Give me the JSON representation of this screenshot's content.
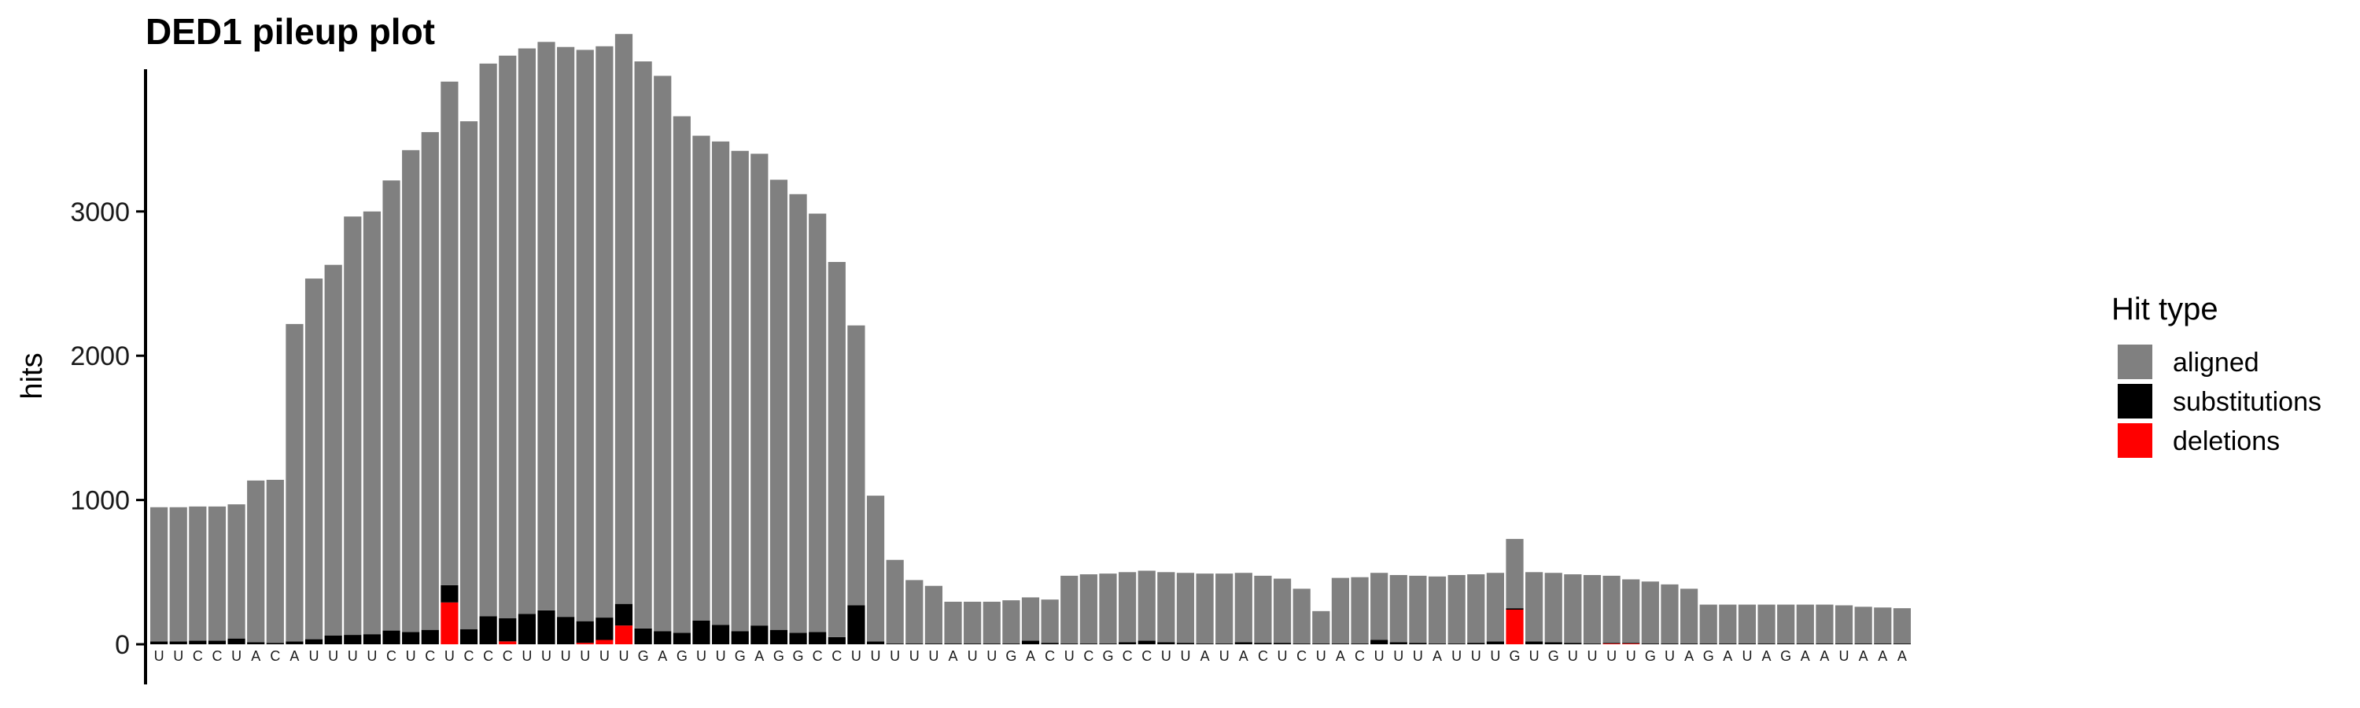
{
  "chart_data": {
    "type": "bar",
    "stacked": true,
    "title": "DED1 pileup plot",
    "xlabel": "",
    "ylabel": "hits",
    "ylim": [
      0,
      4000
    ],
    "yticks": [
      0,
      1000,
      2000,
      3000
    ],
    "grid": false,
    "legend": {
      "title": "Hit type",
      "position": "right"
    },
    "categories": [
      "U",
      "U",
      "C",
      "C",
      "U",
      "A",
      "C",
      "A",
      "U",
      "U",
      "U",
      "U",
      "C",
      "U",
      "C",
      "U",
      "C",
      "C",
      "C",
      "U",
      "U",
      "U",
      "U",
      "U",
      "U",
      "G",
      "A",
      "G",
      "U",
      "U",
      "G",
      "A",
      "G",
      "G",
      "C",
      "C",
      "U",
      "U",
      "U",
      "U",
      "U",
      "A",
      "U",
      "U",
      "G",
      "A",
      "C",
      "U",
      "C",
      "G",
      "C",
      "C",
      "U",
      "U",
      "A",
      "U",
      "A",
      "C",
      "U",
      "C",
      "U",
      "A",
      "C",
      "U",
      "U",
      "U",
      "A",
      "U",
      "U",
      "U",
      "G",
      "U",
      "G",
      "U",
      "U",
      "U",
      "U",
      "G",
      "U",
      "A",
      "G",
      "A",
      "U",
      "A",
      "G",
      "A",
      "A",
      "U",
      "A",
      "A",
      "A"
    ],
    "series": [
      {
        "name": "aligned",
        "color": "#808080",
        "values": [
          930,
          930,
          930,
          930,
          930,
          1120,
          1130,
          2200,
          2500,
          2570,
          2900,
          2930,
          3120,
          3340,
          3450,
          3490,
          3520,
          3830,
          3900,
          3920,
          3940,
          3950,
          3960,
          3960,
          3950,
          3930,
          3850,
          3580,
          3360,
          3350,
          3330,
          3270,
          3120,
          3040,
          2900,
          2600,
          1940,
          1010,
          580,
          440,
          400,
          290,
          290,
          290,
          300,
          300,
          300,
          470,
          480,
          485,
          485,
          485,
          485,
          485,
          485,
          485,
          480,
          465,
          445,
          380,
          225,
          455,
          460,
          465,
          465,
          465,
          465,
          475,
          475,
          475,
          480,
          480,
          480,
          475,
          475,
          465,
          440,
          430,
          410,
          380,
          270,
          270,
          270,
          270,
          270,
          270,
          270,
          265,
          255,
          250,
          245
        ]
      },
      {
        "name": "substitutions",
        "color": "#000000",
        "values": [
          20,
          20,
          25,
          25,
          40,
          15,
          10,
          20,
          35,
          60,
          65,
          70,
          95,
          85,
          100,
          120,
          105,
          195,
          160,
          210,
          235,
          190,
          150,
          155,
          150,
          110,
          90,
          80,
          165,
          135,
          90,
          130,
          100,
          80,
          85,
          50,
          270,
          20,
          5,
          5,
          5,
          5,
          5,
          5,
          5,
          25,
          10,
          5,
          5,
          5,
          15,
          25,
          15,
          10,
          5,
          5,
          15,
          10,
          10,
          5,
          5,
          5,
          5,
          30,
          15,
          10,
          5,
          5,
          10,
          20,
          10,
          20,
          15,
          10,
          5,
          5,
          5,
          5,
          5,
          5,
          5,
          5,
          5,
          5,
          5,
          5,
          5,
          5,
          5,
          5,
          5
        ]
      },
      {
        "name": "deletions",
        "color": "#ff0000",
        "values": [
          0,
          0,
          0,
          0,
          0,
          0,
          0,
          0,
          0,
          0,
          0,
          0,
          0,
          0,
          0,
          290,
          0,
          0,
          20,
          0,
          0,
          0,
          10,
          30,
          130,
          0,
          0,
          0,
          0,
          0,
          0,
          0,
          0,
          0,
          0,
          0,
          0,
          0,
          0,
          0,
          0,
          0,
          0,
          0,
          0,
          0,
          0,
          0,
          0,
          0,
          0,
          0,
          0,
          0,
          0,
          0,
          0,
          0,
          0,
          0,
          0,
          0,
          0,
          0,
          0,
          0,
          0,
          0,
          0,
          0,
          240,
          0,
          0,
          0,
          0,
          5,
          5,
          0,
          0,
          0,
          0,
          0,
          0,
          0,
          0,
          0,
          0,
          0,
          0,
          0,
          0
        ]
      }
    ]
  }
}
